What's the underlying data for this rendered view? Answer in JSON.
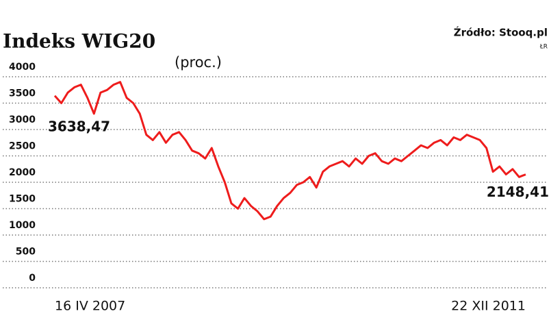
{
  "chart_data": {
    "type": "line",
    "title": "Indeks WIG20",
    "subtitle": "(proc.)",
    "source": "Źródło: Stooq.pl",
    "author": "ŁR",
    "categories": [
      "16 IV 2007",
      null,
      null,
      null,
      null,
      null,
      null,
      null,
      null,
      null,
      null,
      null,
      null,
      null,
      null,
      null,
      null,
      null,
      null,
      null,
      null,
      null,
      null,
      null,
      null,
      null,
      null,
      null,
      null,
      null,
      null,
      null,
      null,
      null,
      null,
      null,
      null,
      null,
      null,
      null,
      null,
      null,
      null,
      null,
      null,
      null,
      null,
      null,
      null,
      null,
      null,
      null,
      null,
      null,
      null,
      null,
      null,
      null,
      null,
      null,
      null,
      null,
      null,
      null,
      null,
      null,
      null,
      null,
      null,
      null,
      null,
      null,
      "22 XII 2011"
    ],
    "series": [
      {
        "name": "WIG20",
        "color": "#ee1c1c",
        "values": [
          3638.47,
          3500,
          3700,
          3800,
          3850,
          3600,
          3300,
          3700,
          3750,
          3850,
          3900,
          3600,
          3500,
          3300,
          2900,
          2800,
          2950,
          2750,
          2900,
          2950,
          2800,
          2600,
          2550,
          2450,
          2650,
          2300,
          2000,
          1600,
          1500,
          1700,
          1550,
          1450,
          1300,
          1350,
          1550,
          1700,
          1800,
          1950,
          2000,
          2100,
          1900,
          2200,
          2300,
          2350,
          2400,
          2300,
          2450,
          2350,
          2500,
          2550,
          2400,
          2350,
          2450,
          2400,
          2500,
          2600,
          2700,
          2650,
          2750,
          2800,
          2700,
          2850,
          2800,
          2900,
          2850,
          2800,
          2650,
          2200,
          2300,
          2150,
          2250,
          2100,
          2148.41
        ],
        "value_labels": [
          "3638,47",
          null,
          null,
          null,
          null,
          null,
          null,
          null,
          null,
          null,
          null,
          null,
          null,
          null,
          null,
          null,
          null,
          null,
          null,
          null,
          null,
          null,
          null,
          null,
          null,
          null,
          null,
          null,
          null,
          null,
          null,
          null,
          null,
          null,
          null,
          null,
          null,
          null,
          null,
          null,
          null,
          null,
          null,
          null,
          null,
          null,
          null,
          null,
          null,
          null,
          null,
          null,
          null,
          null,
          null,
          null,
          null,
          null,
          null,
          null,
          null,
          null,
          null,
          null,
          null,
          null,
          null,
          null,
          null,
          null,
          null,
          null,
          "2148,41"
        ]
      }
    ],
    "ylim": [
      0,
      4000
    ],
    "yticks": [
      0,
      500,
      1000,
      1500,
      2000,
      2500,
      3000,
      3500,
      4000
    ],
    "grid": true
  }
}
